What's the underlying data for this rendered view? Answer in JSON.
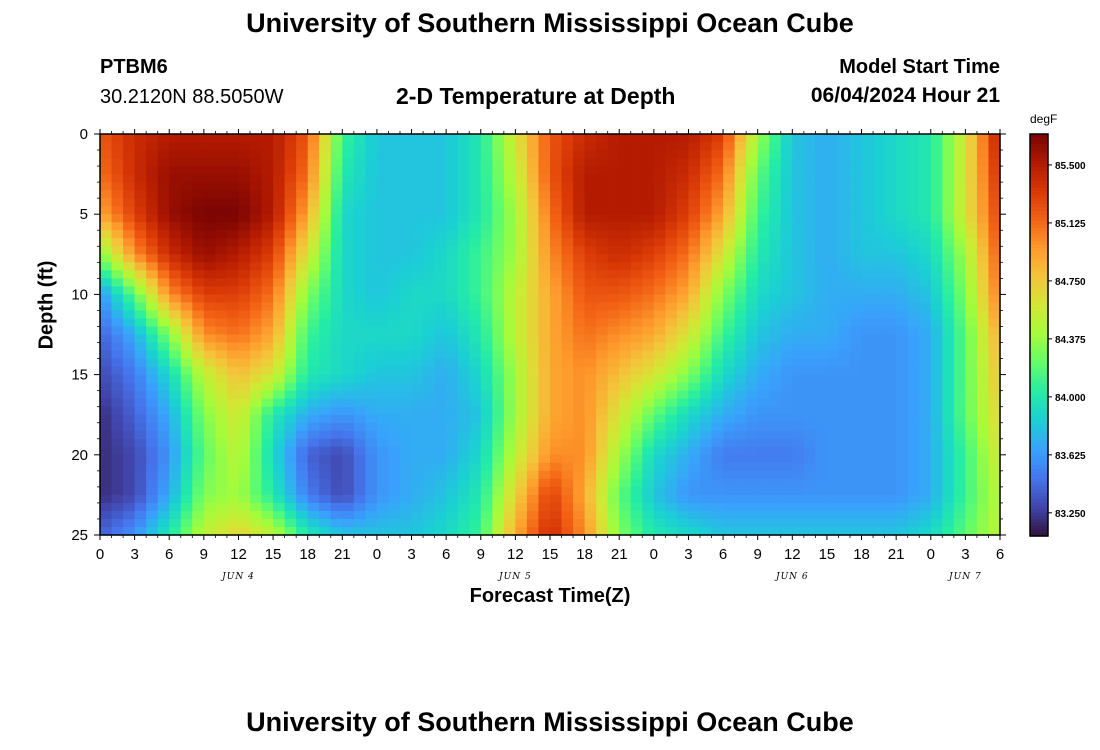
{
  "header": {
    "title": "University of Southern Mississippi Ocean Cube",
    "station_id": "PTBM6",
    "coordinates": "30.2120N  88.5050W",
    "subtitle": "2-D Temperature at Depth",
    "model_start_label": "Model Start Time",
    "model_start_value": "06/04/2024 Hour 21"
  },
  "footer": {
    "title": "University of Southern Mississippi Ocean Cube"
  },
  "colors": {
    "background": "#ffffff",
    "text": "#000000",
    "colormap": [
      "#30123b",
      "#4145ab",
      "#4675ed",
      "#39a2fc",
      "#1bcfd4",
      "#24eca6",
      "#61fc6c",
      "#a4fc3b",
      "#d1e834",
      "#f3c63a",
      "#fe9b2d",
      "#f36315",
      "#d93806",
      "#b11901",
      "#7a0403"
    ]
  },
  "chart_data": {
    "type": "heatmap",
    "title": "2-D Temperature at Depth",
    "xlabel": "Forecast Time(Z)",
    "ylabel": "Depth (ft)",
    "x_unit": "hours since JUN 4 00Z",
    "x_range": [
      0,
      78
    ],
    "x_ticks": [
      0,
      3,
      6,
      9,
      12,
      15,
      18,
      21,
      24,
      27,
      30,
      33,
      36,
      39,
      42,
      45,
      48,
      51,
      54,
      57,
      60,
      63,
      66,
      69,
      72,
      75,
      78
    ],
    "x_tick_labels": [
      "0",
      "3",
      "6",
      "9",
      "12",
      "15",
      "18",
      "21",
      "0",
      "3",
      "6",
      "9",
      "12",
      "15",
      "18",
      "21",
      "0",
      "3",
      "6",
      "9",
      "12",
      "15",
      "18",
      "21",
      "0",
      "3",
      "6"
    ],
    "date_labels": [
      {
        "text": "JUN 4",
        "hour": 12
      },
      {
        "text": "JUN 5",
        "hour": 36
      },
      {
        "text": "JUN 6",
        "hour": 60
      },
      {
        "text": "JUN 7",
        "hour": 75
      }
    ],
    "y_range": [
      0,
      25
    ],
    "y_ticks": [
      0,
      5,
      10,
      15,
      20,
      25
    ],
    "y_tick_labels": [
      "0",
      "5",
      "10",
      "15",
      "20",
      "25"
    ],
    "grid": false,
    "colorbar": {
      "unit": "degF",
      "range": [
        83.1,
        85.7
      ],
      "ticks": [
        83.25,
        83.625,
        84.0,
        84.375,
        84.75,
        85.125,
        85.5
      ],
      "tick_labels": [
        "83.250",
        "83.625",
        "84.000",
        "84.375",
        "84.750",
        "85.125",
        "85.500"
      ]
    },
    "depths_ft": [
      0,
      2.5,
      5,
      7.5,
      10,
      12.5,
      15,
      17.5,
      20,
      22.5,
      25
    ],
    "hours": [
      0,
      3,
      6,
      9,
      12,
      15,
      18,
      21,
      24,
      27,
      30,
      33,
      36,
      39,
      42,
      45,
      48,
      51,
      54,
      57,
      60,
      63,
      66,
      69,
      72,
      75,
      78
    ],
    "values_degF": [
      [
        85.2,
        85.4,
        85.5,
        85.5,
        85.5,
        85.5,
        85.2,
        84.1,
        83.8,
        83.8,
        83.8,
        84.0,
        84.6,
        85.2,
        85.4,
        85.5,
        85.5,
        85.5,
        85.3,
        84.4,
        83.8,
        83.7,
        83.8,
        83.9,
        84.0,
        84.6,
        85.5
      ],
      [
        85.1,
        85.4,
        85.6,
        85.6,
        85.6,
        85.5,
        85.1,
        84.0,
        83.8,
        83.8,
        83.8,
        84.0,
        84.5,
        85.2,
        85.5,
        85.5,
        85.5,
        85.4,
        85.1,
        84.2,
        83.8,
        83.7,
        83.8,
        83.9,
        84.0,
        84.6,
        85.4
      ],
      [
        84.9,
        85.3,
        85.6,
        85.7,
        85.7,
        85.5,
        84.9,
        83.9,
        83.8,
        83.8,
        83.8,
        84.0,
        84.4,
        85.1,
        85.5,
        85.5,
        85.5,
        85.3,
        84.9,
        84.1,
        83.8,
        83.7,
        83.8,
        83.9,
        84.0,
        84.6,
        85.3
      ],
      [
        84.3,
        85.0,
        85.4,
        85.6,
        85.5,
        85.3,
        84.6,
        83.9,
        83.8,
        83.8,
        83.9,
        84.1,
        84.4,
        85.0,
        85.3,
        85.4,
        85.3,
        85.1,
        84.6,
        84.0,
        83.8,
        83.7,
        83.8,
        83.8,
        83.9,
        84.4,
        85.2
      ],
      [
        83.6,
        84.2,
        85.0,
        85.3,
        85.3,
        85.1,
        84.3,
        83.9,
        83.8,
        83.9,
        83.9,
        84.1,
        84.5,
        84.9,
        85.2,
        85.2,
        85.1,
        84.9,
        84.3,
        83.9,
        83.8,
        83.7,
        83.7,
        83.7,
        83.8,
        84.3,
        85.1
      ],
      [
        83.4,
        83.7,
        84.3,
        85.0,
        85.1,
        84.9,
        84.1,
        83.9,
        83.9,
        83.9,
        83.8,
        84.0,
        84.5,
        84.9,
        85.1,
        85.0,
        84.9,
        84.6,
        84.1,
        83.8,
        83.7,
        83.7,
        83.6,
        83.6,
        83.7,
        84.2,
        84.9
      ],
      [
        83.3,
        83.5,
        83.9,
        84.5,
        84.8,
        84.6,
        84.0,
        83.9,
        83.8,
        83.8,
        83.7,
        83.9,
        84.4,
        84.9,
        85.0,
        84.8,
        84.6,
        84.3,
        83.9,
        83.7,
        83.6,
        83.6,
        83.6,
        83.6,
        83.7,
        84.2,
        84.8
      ],
      [
        83.2,
        83.4,
        83.7,
        84.3,
        84.6,
        84.0,
        83.7,
        83.6,
        83.7,
        83.7,
        83.7,
        83.8,
        84.4,
        84.9,
        85.0,
        84.6,
        84.2,
        83.9,
        83.7,
        83.6,
        83.6,
        83.6,
        83.6,
        83.6,
        83.7,
        84.2,
        84.7
      ],
      [
        83.2,
        83.3,
        83.6,
        84.2,
        84.5,
        83.9,
        83.4,
        83.3,
        83.6,
        83.7,
        83.7,
        83.9,
        84.5,
        85.0,
        85.0,
        84.4,
        83.9,
        83.7,
        83.5,
        83.5,
        83.5,
        83.6,
        83.6,
        83.6,
        83.7,
        84.1,
        84.6
      ],
      [
        83.2,
        83.3,
        83.7,
        84.3,
        84.4,
        84.0,
        83.5,
        83.3,
        83.6,
        83.7,
        83.8,
        84.0,
        84.7,
        85.3,
        84.9,
        84.2,
        83.8,
        83.6,
        83.6,
        83.6,
        83.6,
        83.6,
        83.6,
        83.6,
        83.7,
        84.1,
        84.5
      ],
      [
        83.4,
        83.6,
        84.0,
        84.5,
        84.7,
        84.5,
        84.0,
        83.8,
        83.8,
        83.8,
        83.9,
        84.1,
        84.9,
        85.4,
        85.0,
        84.3,
        84.0,
        83.9,
        83.8,
        83.8,
        83.8,
        83.8,
        83.8,
        83.8,
        83.9,
        84.2,
        84.5
      ]
    ]
  }
}
